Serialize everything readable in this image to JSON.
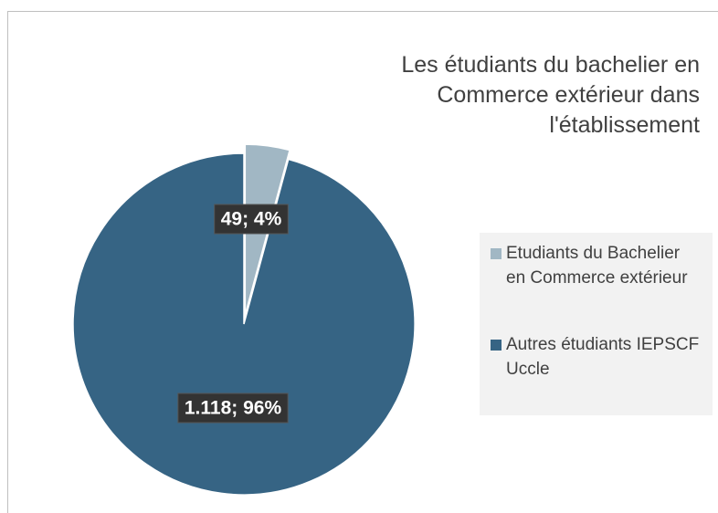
{
  "chart_data": {
    "type": "pie",
    "title": "Les étudiants du bachelier en Commerce extérieur dans l'établissement",
    "categories": [
      "Etudiants du Bachelier en Commerce extérieur",
      "Autres étudiants IEPSCF Uccle"
    ],
    "values": [
      49,
      1118
    ],
    "value_labels": [
      "49; 4%",
      "1.118; 96%"
    ],
    "colors": [
      "#a1b7c4",
      "#366484"
    ],
    "legend": "right"
  }
}
